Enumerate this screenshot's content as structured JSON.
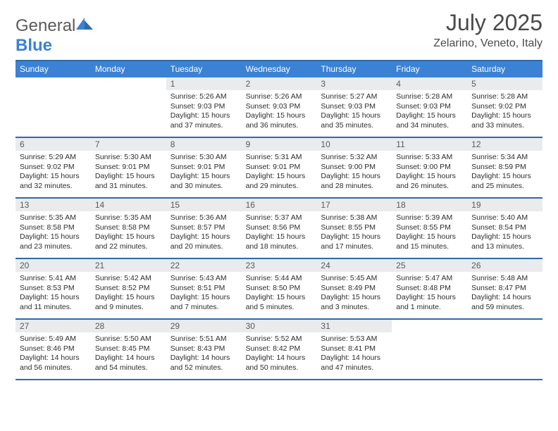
{
  "brand": {
    "general": "General",
    "blue": "Blue"
  },
  "title": "July 2025",
  "location": "Zelarino, Veneto, Italy",
  "colors": {
    "header_bg": "#3b82d4",
    "rule": "#2f6aa8",
    "daynum_bg": "#e9ebed",
    "text": "#2d2d2d"
  },
  "days_of_week": [
    "Sunday",
    "Monday",
    "Tuesday",
    "Wednesday",
    "Thursday",
    "Friday",
    "Saturday"
  ],
  "weeks": [
    [
      null,
      null,
      {
        "n": "1",
        "sunrise": "5:26 AM",
        "sunset": "9:03 PM",
        "daylight": "15 hours and 37 minutes."
      },
      {
        "n": "2",
        "sunrise": "5:26 AM",
        "sunset": "9:03 PM",
        "daylight": "15 hours and 36 minutes."
      },
      {
        "n": "3",
        "sunrise": "5:27 AM",
        "sunset": "9:03 PM",
        "daylight": "15 hours and 35 minutes."
      },
      {
        "n": "4",
        "sunrise": "5:28 AM",
        "sunset": "9:03 PM",
        "daylight": "15 hours and 34 minutes."
      },
      {
        "n": "5",
        "sunrise": "5:28 AM",
        "sunset": "9:02 PM",
        "daylight": "15 hours and 33 minutes."
      }
    ],
    [
      {
        "n": "6",
        "sunrise": "5:29 AM",
        "sunset": "9:02 PM",
        "daylight": "15 hours and 32 minutes."
      },
      {
        "n": "7",
        "sunrise": "5:30 AM",
        "sunset": "9:01 PM",
        "daylight": "15 hours and 31 minutes."
      },
      {
        "n": "8",
        "sunrise": "5:30 AM",
        "sunset": "9:01 PM",
        "daylight": "15 hours and 30 minutes."
      },
      {
        "n": "9",
        "sunrise": "5:31 AM",
        "sunset": "9:01 PM",
        "daylight": "15 hours and 29 minutes."
      },
      {
        "n": "10",
        "sunrise": "5:32 AM",
        "sunset": "9:00 PM",
        "daylight": "15 hours and 28 minutes."
      },
      {
        "n": "11",
        "sunrise": "5:33 AM",
        "sunset": "9:00 PM",
        "daylight": "15 hours and 26 minutes."
      },
      {
        "n": "12",
        "sunrise": "5:34 AM",
        "sunset": "8:59 PM",
        "daylight": "15 hours and 25 minutes."
      }
    ],
    [
      {
        "n": "13",
        "sunrise": "5:35 AM",
        "sunset": "8:58 PM",
        "daylight": "15 hours and 23 minutes."
      },
      {
        "n": "14",
        "sunrise": "5:35 AM",
        "sunset": "8:58 PM",
        "daylight": "15 hours and 22 minutes."
      },
      {
        "n": "15",
        "sunrise": "5:36 AM",
        "sunset": "8:57 PM",
        "daylight": "15 hours and 20 minutes."
      },
      {
        "n": "16",
        "sunrise": "5:37 AM",
        "sunset": "8:56 PM",
        "daylight": "15 hours and 18 minutes."
      },
      {
        "n": "17",
        "sunrise": "5:38 AM",
        "sunset": "8:55 PM",
        "daylight": "15 hours and 17 minutes."
      },
      {
        "n": "18",
        "sunrise": "5:39 AM",
        "sunset": "8:55 PM",
        "daylight": "15 hours and 15 minutes."
      },
      {
        "n": "19",
        "sunrise": "5:40 AM",
        "sunset": "8:54 PM",
        "daylight": "15 hours and 13 minutes."
      }
    ],
    [
      {
        "n": "20",
        "sunrise": "5:41 AM",
        "sunset": "8:53 PM",
        "daylight": "15 hours and 11 minutes."
      },
      {
        "n": "21",
        "sunrise": "5:42 AM",
        "sunset": "8:52 PM",
        "daylight": "15 hours and 9 minutes."
      },
      {
        "n": "22",
        "sunrise": "5:43 AM",
        "sunset": "8:51 PM",
        "daylight": "15 hours and 7 minutes."
      },
      {
        "n": "23",
        "sunrise": "5:44 AM",
        "sunset": "8:50 PM",
        "daylight": "15 hours and 5 minutes."
      },
      {
        "n": "24",
        "sunrise": "5:45 AM",
        "sunset": "8:49 PM",
        "daylight": "15 hours and 3 minutes."
      },
      {
        "n": "25",
        "sunrise": "5:47 AM",
        "sunset": "8:48 PM",
        "daylight": "15 hours and 1 minute."
      },
      {
        "n": "26",
        "sunrise": "5:48 AM",
        "sunset": "8:47 PM",
        "daylight": "14 hours and 59 minutes."
      }
    ],
    [
      {
        "n": "27",
        "sunrise": "5:49 AM",
        "sunset": "8:46 PM",
        "daylight": "14 hours and 56 minutes."
      },
      {
        "n": "28",
        "sunrise": "5:50 AM",
        "sunset": "8:45 PM",
        "daylight": "14 hours and 54 minutes."
      },
      {
        "n": "29",
        "sunrise": "5:51 AM",
        "sunset": "8:43 PM",
        "daylight": "14 hours and 52 minutes."
      },
      {
        "n": "30",
        "sunrise": "5:52 AM",
        "sunset": "8:42 PM",
        "daylight": "14 hours and 50 minutes."
      },
      {
        "n": "31",
        "sunrise": "5:53 AM",
        "sunset": "8:41 PM",
        "daylight": "14 hours and 47 minutes."
      },
      null,
      null
    ]
  ],
  "labels": {
    "sunrise": "Sunrise: ",
    "sunset": "Sunset: ",
    "daylight": "Daylight: "
  }
}
